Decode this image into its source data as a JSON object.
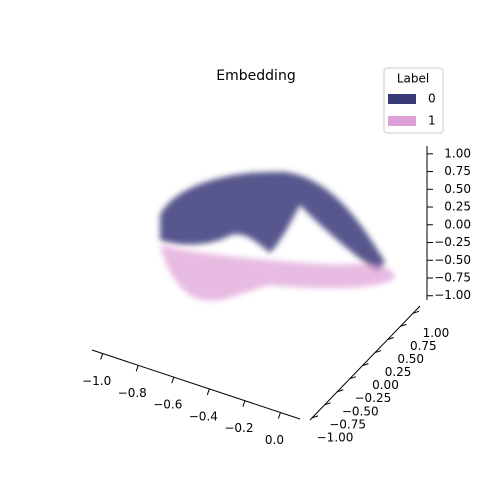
{
  "chart_data": {
    "type": "scatter3d",
    "title": "Embedding",
    "legend_title": "Label",
    "legend": "upper right",
    "series": [
      {
        "name": "0",
        "color": "#393b79"
      },
      {
        "name": "1",
        "color": "#de9ed6"
      }
    ],
    "xlim": [
      -1.06,
      0.11
    ],
    "xticks": [
      {
        "value": -1.0,
        "label": "−1.0"
      },
      {
        "value": -0.8,
        "label": "−0.8"
      },
      {
        "value": -0.6,
        "label": "−0.6"
      },
      {
        "value": -0.4,
        "label": "−0.4"
      },
      {
        "value": -0.2,
        "label": "−0.2"
      },
      {
        "value": 0.0,
        "label": "0.0"
      }
    ],
    "ylim": [
      -1.04,
      1.14
    ],
    "yticks": [
      {
        "value": -1.0,
        "label": "−1.00"
      },
      {
        "value": -0.75,
        "label": "−0.75"
      },
      {
        "value": -0.5,
        "label": "−0.50"
      },
      {
        "value": -0.25,
        "label": "−0.25"
      },
      {
        "value": 0.0,
        "label": "0.00"
      },
      {
        "value": 0.25,
        "label": "0.25"
      },
      {
        "value": 0.5,
        "label": "0.50"
      },
      {
        "value": 0.75,
        "label": "0.75"
      },
      {
        "value": 1.0,
        "label": "1.00"
      }
    ],
    "zlim": [
      -1.06,
      1.11
    ],
    "zticks": [
      {
        "value": -1.0,
        "label": "−1.00"
      },
      {
        "value": -0.75,
        "label": "−0.75"
      },
      {
        "value": -0.5,
        "label": "−0.50"
      },
      {
        "value": -0.25,
        "label": "−0.25"
      },
      {
        "value": 0.0,
        "label": "0.00"
      },
      {
        "value": 0.25,
        "label": "0.25"
      },
      {
        "value": 0.5,
        "label": "0.50"
      },
      {
        "value": 0.75,
        "label": "0.75"
      },
      {
        "value": 1.0,
        "label": "1.00"
      }
    ]
  }
}
